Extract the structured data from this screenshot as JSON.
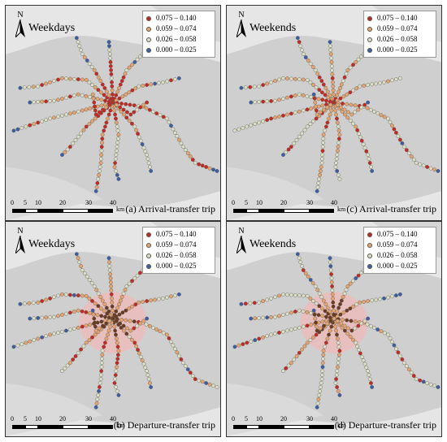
{
  "north_label": "N",
  "legend_items": [
    {
      "range": "0.075 – 0.140",
      "color": "#c8281f"
    },
    {
      "range": "0.059 – 0.074",
      "color": "#e8a46c"
    },
    {
      "range": "0.026 – 0.058",
      "color": "#dcdfc4"
    },
    {
      "range": "0.000 – 0.025",
      "color": "#3a5ea6"
    }
  ],
  "scale": {
    "ticks": [
      "0",
      "5",
      "10",
      "20",
      "30",
      "40"
    ],
    "unit": "km"
  },
  "panels": [
    {
      "title": "Weekdays",
      "caption": "(a) Arrival-transfer trip",
      "intensity": 0.9,
      "hotspot": false,
      "dark_core": false
    },
    {
      "title": "Weekends",
      "caption": "(c) Arrival-transfer trip",
      "intensity": 0.6,
      "hotspot": false,
      "dark_core": false
    },
    {
      "title": "Weekdays",
      "caption": "(b) Departure-transfer trip",
      "intensity": 0.9,
      "hotspot": true,
      "dark_core": true
    },
    {
      "title": "Weekends",
      "caption": "(d) Departure-transfer trip",
      "intensity": 0.6,
      "hotspot": true,
      "dark_core": true
    }
  ]
}
